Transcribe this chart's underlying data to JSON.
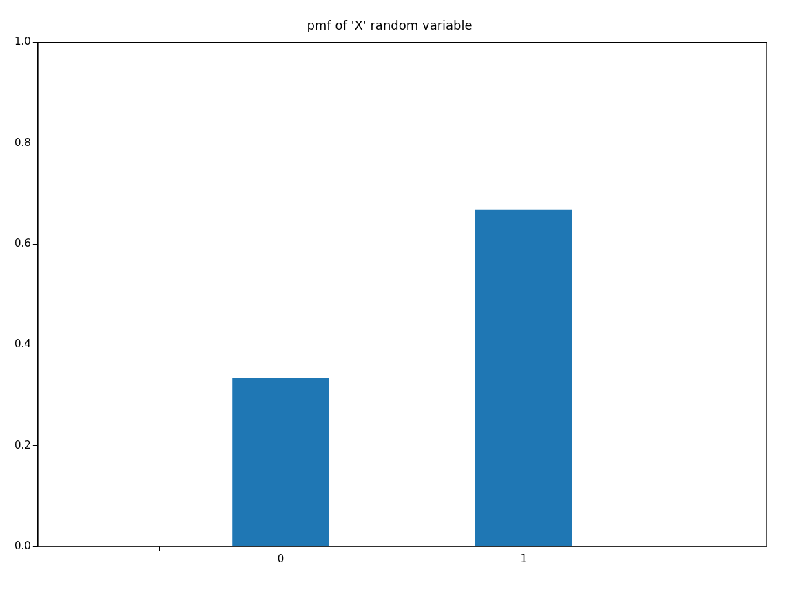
{
  "chart_data": {
    "type": "bar",
    "title": "pmf of 'X' random variable",
    "categories": [
      null,
      "0",
      "1",
      null
    ],
    "values": [
      null,
      0.333,
      0.667,
      null
    ],
    "color": "#1f77b4",
    "ylim": [
      0,
      1
    ],
    "yticks": [
      {
        "value": 0,
        "label": "0.0"
      },
      {
        "value": 0.2,
        "label": "0.2"
      },
      {
        "value": 0.4,
        "label": "0.4"
      },
      {
        "value": 0.6,
        "label": "0.6"
      },
      {
        "value": 0.8,
        "label": "0.8"
      },
      {
        "value": 1,
        "label": "1.0"
      }
    ],
    "grid": false
  }
}
